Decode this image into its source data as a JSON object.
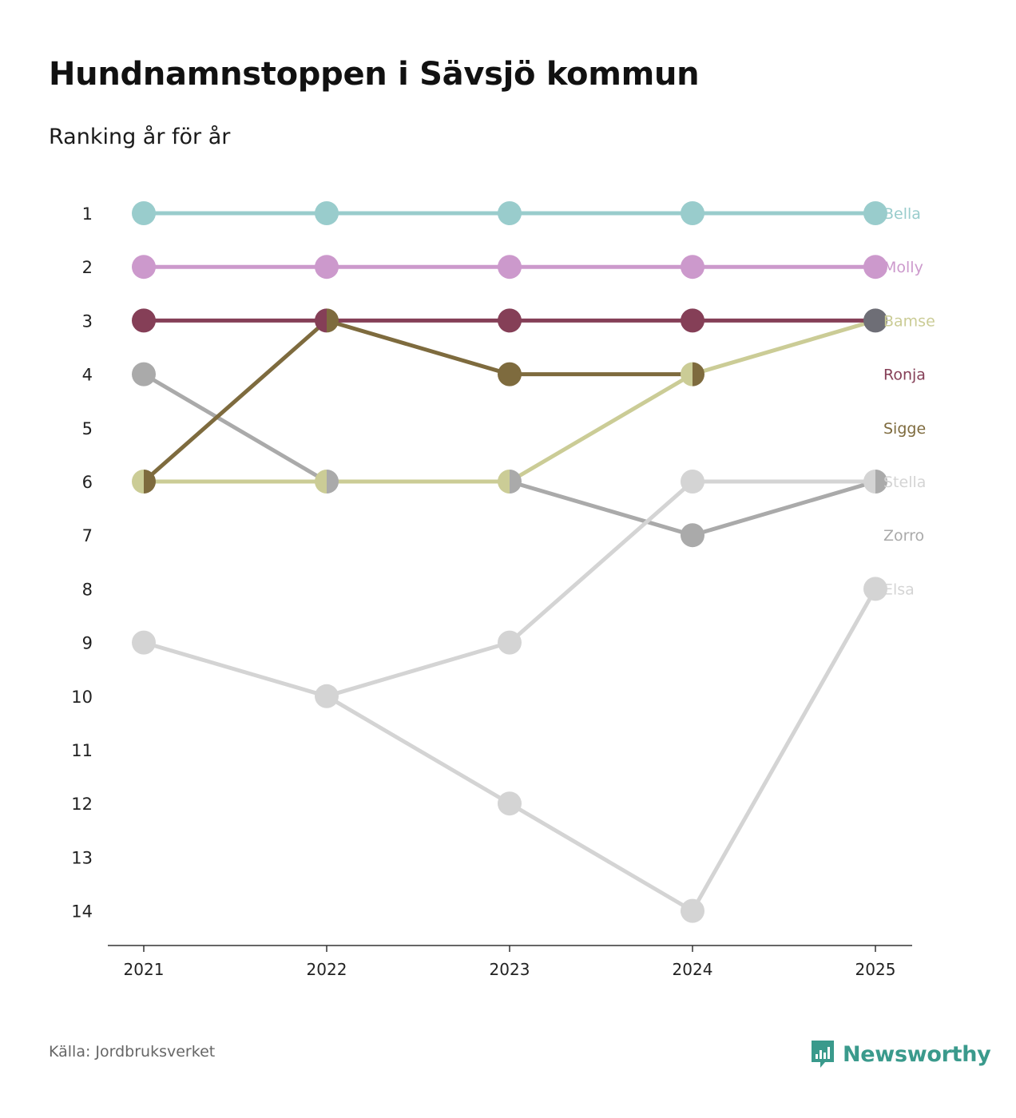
{
  "title": "Hundnamnstoppen i Sävsjö kommun",
  "subtitle": "Ranking år för år",
  "source": "Källa: Jordbruksverket",
  "brand": {
    "name": "Newsworthy",
    "icon": "newsworthy-logo-icon",
    "color": "#3a9a8c"
  },
  "chart_data": {
    "type": "line",
    "title": "Hundnamnstoppen i Sävsjö kommun",
    "subtitle": "Ranking år för år",
    "xlabel": "",
    "ylabel": "",
    "x": [
      "2021",
      "2022",
      "2023",
      "2024",
      "2025"
    ],
    "y_ticks": [
      "1",
      "2",
      "3",
      "4",
      "5",
      "6",
      "7",
      "8",
      "9",
      "10",
      "11",
      "12",
      "13",
      "14"
    ],
    "ylim": [
      1,
      14
    ],
    "y_inverted": true,
    "grid": false,
    "legend": "right-end labels",
    "series": [
      {
        "name": "Zorro",
        "color": "#aaaaaa",
        "values": [
          4,
          6,
          6,
          7,
          6
        ],
        "label_rank": 7
      },
      {
        "name": "Stella",
        "color": "#d4d4d4",
        "values": [
          9,
          10,
          9,
          6,
          6
        ],
        "label_rank": 6
      },
      {
        "name": "Elsa",
        "color": "#d4d4d4",
        "values": [
          null,
          10,
          12,
          14,
          8
        ],
        "label_rank": 8
      },
      {
        "name": "Sigge",
        "color": "#7e6b3e",
        "values": [
          6,
          3,
          4,
          4,
          null
        ],
        "label_rank": 5
      },
      {
        "name": "Bamse",
        "color": "#cbcc96",
        "values": [
          6,
          6,
          6,
          4,
          3
        ],
        "label_rank": 3
      },
      {
        "name": "Ronja",
        "color": "#853f57",
        "values": [
          3,
          3,
          3,
          3,
          3
        ],
        "label_rank": 4
      },
      {
        "name": "Molly",
        "color": "#cc99cc",
        "values": [
          2,
          2,
          2,
          2,
          2
        ],
        "label_rank": 2
      },
      {
        "name": "Bella",
        "color": "#99cccc",
        "values": [
          1,
          1,
          1,
          1,
          1
        ],
        "label_rank": 1
      }
    ]
  }
}
